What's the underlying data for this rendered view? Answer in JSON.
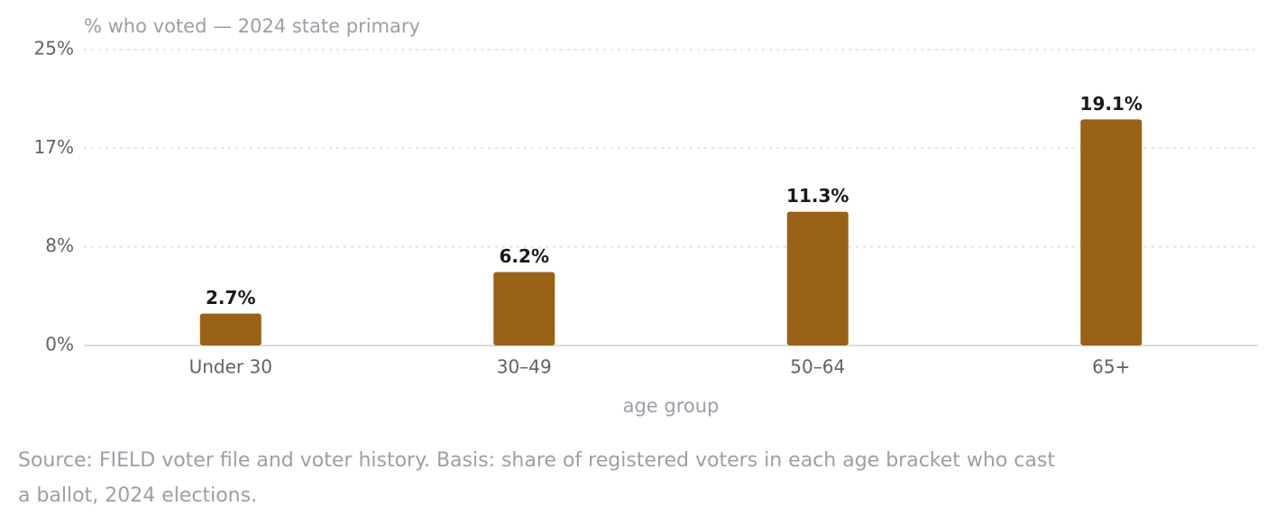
{
  "chart_data": {
    "type": "bar",
    "title": "% who voted — 2024 state primary",
    "categories": [
      "Under 30",
      "30–49",
      "50–64",
      "65+"
    ],
    "values": [
      2.7,
      6.2,
      11.3,
      19.1
    ],
    "value_labels": [
      "2.7%",
      "6.2%",
      "11.3%",
      "19.1%"
    ],
    "color": "#9a6216",
    "x_label": "age group",
    "ylim": [
      0,
      25
    ],
    "yticks": [
      {
        "value": 0,
        "label": "0%"
      },
      {
        "value": 8.333,
        "label": "8%"
      },
      {
        "value": 16.667,
        "label": "17%"
      },
      {
        "value": 25,
        "label": "25%"
      }
    ],
    "grid": true,
    "note": "Source: FIELD voter file and voter history. Basis: share of registered voters in each age bracket who cast a ballot, 2024 elections."
  }
}
